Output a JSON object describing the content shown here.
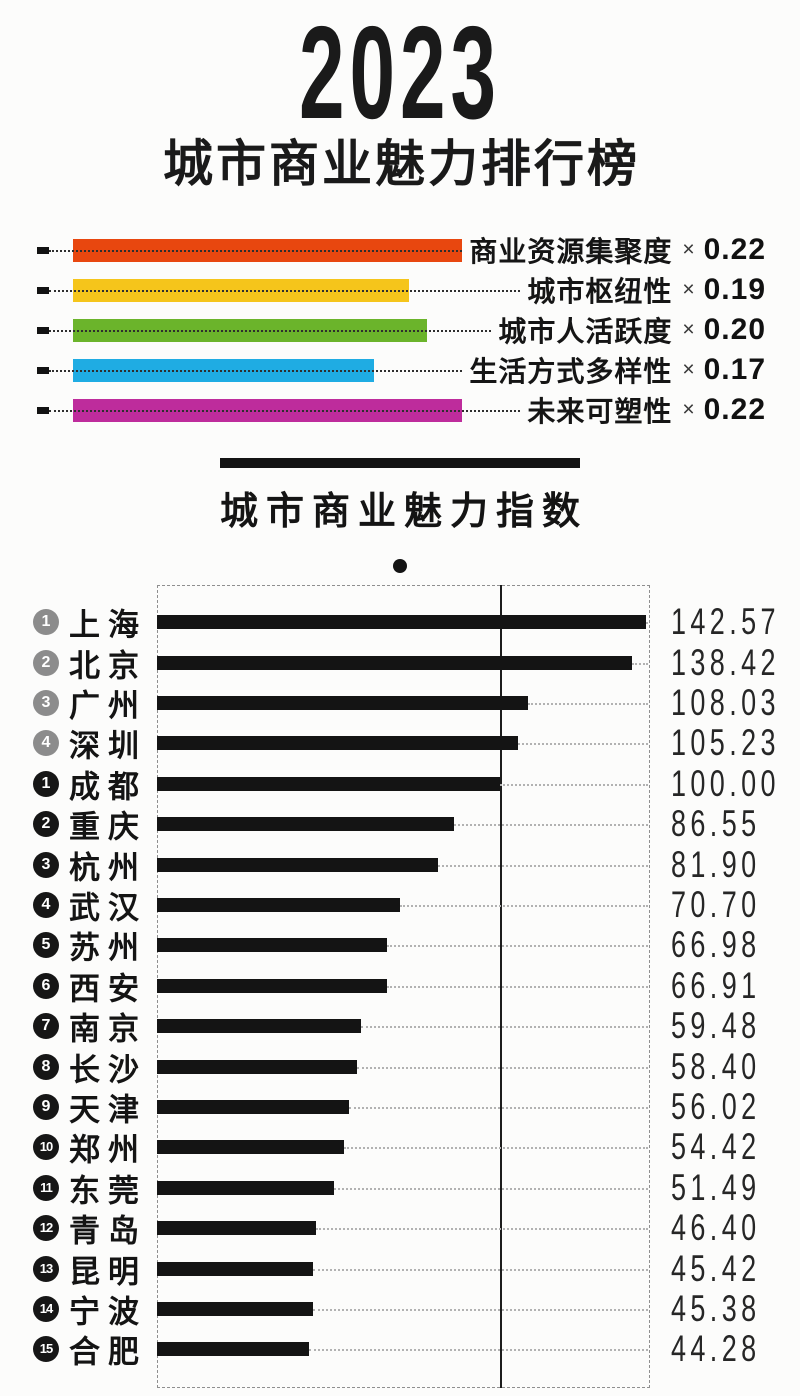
{
  "header": {
    "year": "2023",
    "subtitle": "城市商业魅力排行榜"
  },
  "legend": {
    "marker": "dash-icon",
    "multiply_sign": "×",
    "items": [
      {
        "label": "商业资源集聚度",
        "weight": 0.22,
        "color": "#E8470F"
      },
      {
        "label": "城市枢纽性",
        "weight": 0.19,
        "color": "#F5C51B"
      },
      {
        "label": "城市人活跃度",
        "weight": 0.2,
        "color": "#6BB42B"
      },
      {
        "label": "生活方式多样性",
        "weight": 0.17,
        "color": "#1FACE3"
      },
      {
        "label": "未来可塑性",
        "weight": 0.22,
        "color": "#BE2C9C"
      }
    ]
  },
  "section": {
    "title": "城市商业魅力指数"
  },
  "chart_data": {
    "type": "bar",
    "orientation": "horizontal",
    "title": "城市商业魅力指数",
    "xlim": [
      0,
      143.7
    ],
    "reference_value": 100.0,
    "bar_color": "#141414",
    "grid": "dotted-leader-lines",
    "badge_colors": {
      "super": "#8c8c8c",
      "new": "#161616"
    },
    "rows": [
      {
        "rank": "1",
        "tier": "super",
        "city": "上海",
        "value": 142.57
      },
      {
        "rank": "2",
        "tier": "super",
        "city": "北京",
        "value": 138.42
      },
      {
        "rank": "3",
        "tier": "super",
        "city": "广州",
        "value": 108.03
      },
      {
        "rank": "4",
        "tier": "super",
        "city": "深圳",
        "value": 105.23
      },
      {
        "rank": "1",
        "tier": "new",
        "city": "成都",
        "value": 100.0
      },
      {
        "rank": "2",
        "tier": "new",
        "city": "重庆",
        "value": 86.55
      },
      {
        "rank": "3",
        "tier": "new",
        "city": "杭州",
        "value": 81.9
      },
      {
        "rank": "4",
        "tier": "new",
        "city": "武汉",
        "value": 70.7
      },
      {
        "rank": "5",
        "tier": "new",
        "city": "苏州",
        "value": 66.98
      },
      {
        "rank": "6",
        "tier": "new",
        "city": "西安",
        "value": 66.91
      },
      {
        "rank": "7",
        "tier": "new",
        "city": "南京",
        "value": 59.48
      },
      {
        "rank": "8",
        "tier": "new",
        "city": "长沙",
        "value": 58.4
      },
      {
        "rank": "9",
        "tier": "new",
        "city": "天津",
        "value": 56.02
      },
      {
        "rank": "10",
        "tier": "new",
        "city": "郑州",
        "value": 54.42
      },
      {
        "rank": "11",
        "tier": "new",
        "city": "东莞",
        "value": 51.49
      },
      {
        "rank": "12",
        "tier": "new",
        "city": "青岛",
        "value": 46.4
      },
      {
        "rank": "13",
        "tier": "new",
        "city": "昆明",
        "value": 45.42
      },
      {
        "rank": "14",
        "tier": "new",
        "city": "宁波",
        "value": 45.38
      },
      {
        "rank": "15",
        "tier": "new",
        "city": "合肥",
        "value": 44.28
      }
    ]
  }
}
